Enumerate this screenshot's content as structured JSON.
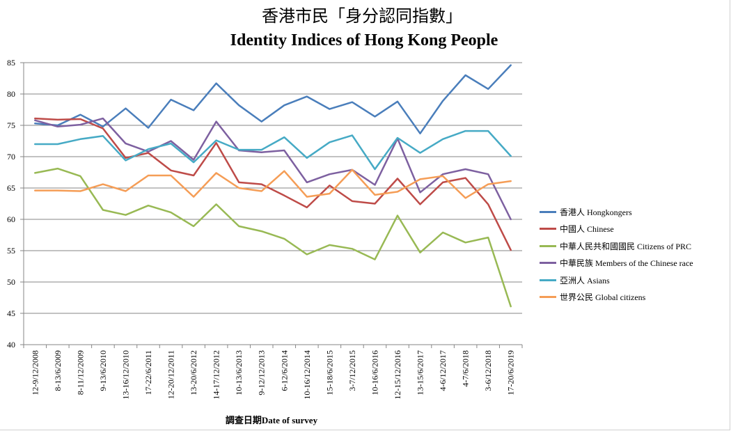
{
  "chart_data": {
    "type": "line",
    "title": "香港市民「身分認同指數」",
    "subtitle": "Identity Indices of Hong Kong People",
    "xlabel": "調查日期Date of survey",
    "ylabel": "",
    "ylim": [
      40,
      85
    ],
    "yticks": [
      40,
      45,
      50,
      55,
      60,
      65,
      70,
      75,
      80,
      85
    ],
    "grid": true,
    "legend": "right",
    "categories": [
      "12-9/12/2008",
      "8-13/6/2009",
      "8-11/12/2009",
      "9-13/6/2010",
      "13-16/12/2010",
      "17-22/6/2011",
      "12-20/12/2011",
      "13-20/6/2012",
      "14-17/12/2012",
      "10-13/6/2013",
      "9-12/12/2013",
      "6-12/6/2014",
      "10-16/12/2014",
      "15-18/6/2015",
      "3-7/12/2015",
      "10-16/6/2016",
      "12-15/12/2016",
      "13-15/6/2017",
      "4-6/12/2017",
      "4-7/6/2018",
      "3-6/12/2018",
      "17-20/6/2019"
    ],
    "series": [
      {
        "name": "香港人 Hongkongers",
        "color": "#4A7EBB",
        "values": [
          75.3,
          75.0,
          76.7,
          74.8,
          77.7,
          74.6,
          79.1,
          77.4,
          81.7,
          78.2,
          75.6,
          78.2,
          79.6,
          77.6,
          78.7,
          76.4,
          78.8,
          73.7,
          78.9,
          83.0,
          80.8,
          84.6
        ]
      },
      {
        "name": "中國人 Chinese",
        "color": "#BE4B48",
        "values": [
          76.1,
          75.9,
          76.0,
          74.5,
          69.8,
          70.6,
          67.8,
          67.0,
          72.2,
          65.9,
          65.6,
          63.8,
          61.9,
          65.4,
          62.9,
          62.5,
          66.5,
          62.4,
          65.9,
          66.6,
          62.4,
          55.1
        ]
      },
      {
        "name": "中華人民共和國國民 Citizens  of PRC",
        "color": "#98B954",
        "values": [
          67.4,
          68.1,
          66.9,
          61.5,
          60.7,
          62.2,
          61.1,
          58.9,
          62.4,
          58.9,
          58.1,
          56.9,
          54.4,
          55.9,
          55.3,
          53.6,
          60.6,
          54.7,
          57.9,
          56.3,
          57.1,
          46.1
        ]
      },
      {
        "name": "中華民族 Members of the Chinese race",
        "color": "#7D60A0",
        "values": [
          75.8,
          74.8,
          75.1,
          76.1,
          72.1,
          70.8,
          72.5,
          69.5,
          75.6,
          71.0,
          70.7,
          71.0,
          65.9,
          67.2,
          67.9,
          65.5,
          72.9,
          64.3,
          67.2,
          68.0,
          67.2,
          60.0
        ]
      },
      {
        "name": "亞洲人 Asians",
        "color": "#46AAC5",
        "values": [
          72.0,
          72.0,
          72.8,
          73.3,
          69.4,
          71.2,
          72.1,
          69.1,
          72.6,
          71.1,
          71.1,
          73.1,
          69.8,
          72.3,
          73.4,
          68.0,
          73.0,
          70.6,
          72.8,
          74.1,
          74.1,
          70.1
        ]
      },
      {
        "name": "世界公民 Global citizens",
        "color": "#F59D56",
        "values": [
          64.6,
          64.6,
          64.5,
          65.6,
          64.5,
          67.0,
          67.0,
          63.6,
          67.4,
          65.0,
          64.5,
          67.7,
          63.6,
          64.1,
          67.9,
          63.9,
          64.4,
          66.4,
          66.9,
          63.4,
          65.6,
          66.1
        ]
      }
    ]
  }
}
